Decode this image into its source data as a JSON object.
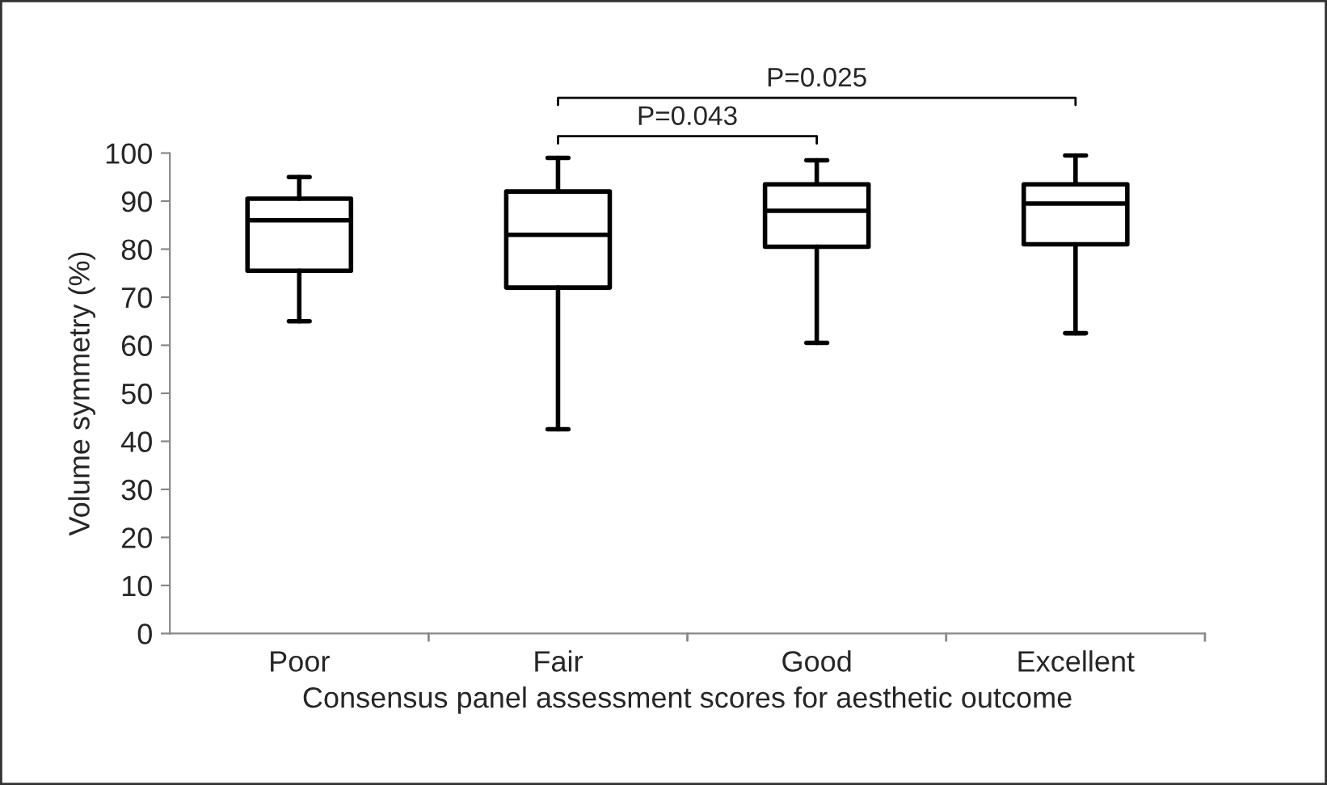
{
  "chart_data": {
    "type": "box",
    "xlabel": "Consensus panel assessment scores for aesthetic outcome",
    "ylabel": "Volume symmetry (%)",
    "categories": [
      "Poor",
      "Fair",
      "Good",
      "Excellent"
    ],
    "boxes": [
      {
        "low": 65,
        "q1": 75.5,
        "median": 86,
        "q3": 90.5,
        "high": 95
      },
      {
        "low": 42.5,
        "q1": 72,
        "median": 83,
        "q3": 92,
        "high": 99
      },
      {
        "low": 60.5,
        "q1": 80.5,
        "median": 88,
        "q3": 93.5,
        "high": 98.5
      },
      {
        "low": 62.5,
        "q1": 81,
        "median": 89.5,
        "q3": 93.5,
        "high": 99.5
      }
    ],
    "ylim": [
      0,
      100
    ],
    "yticks": [
      0,
      10,
      20,
      30,
      40,
      50,
      60,
      70,
      80,
      90,
      100
    ],
    "grid": false,
    "annotations": [
      "P=0.043",
      "P=0.025"
    ]
  }
}
